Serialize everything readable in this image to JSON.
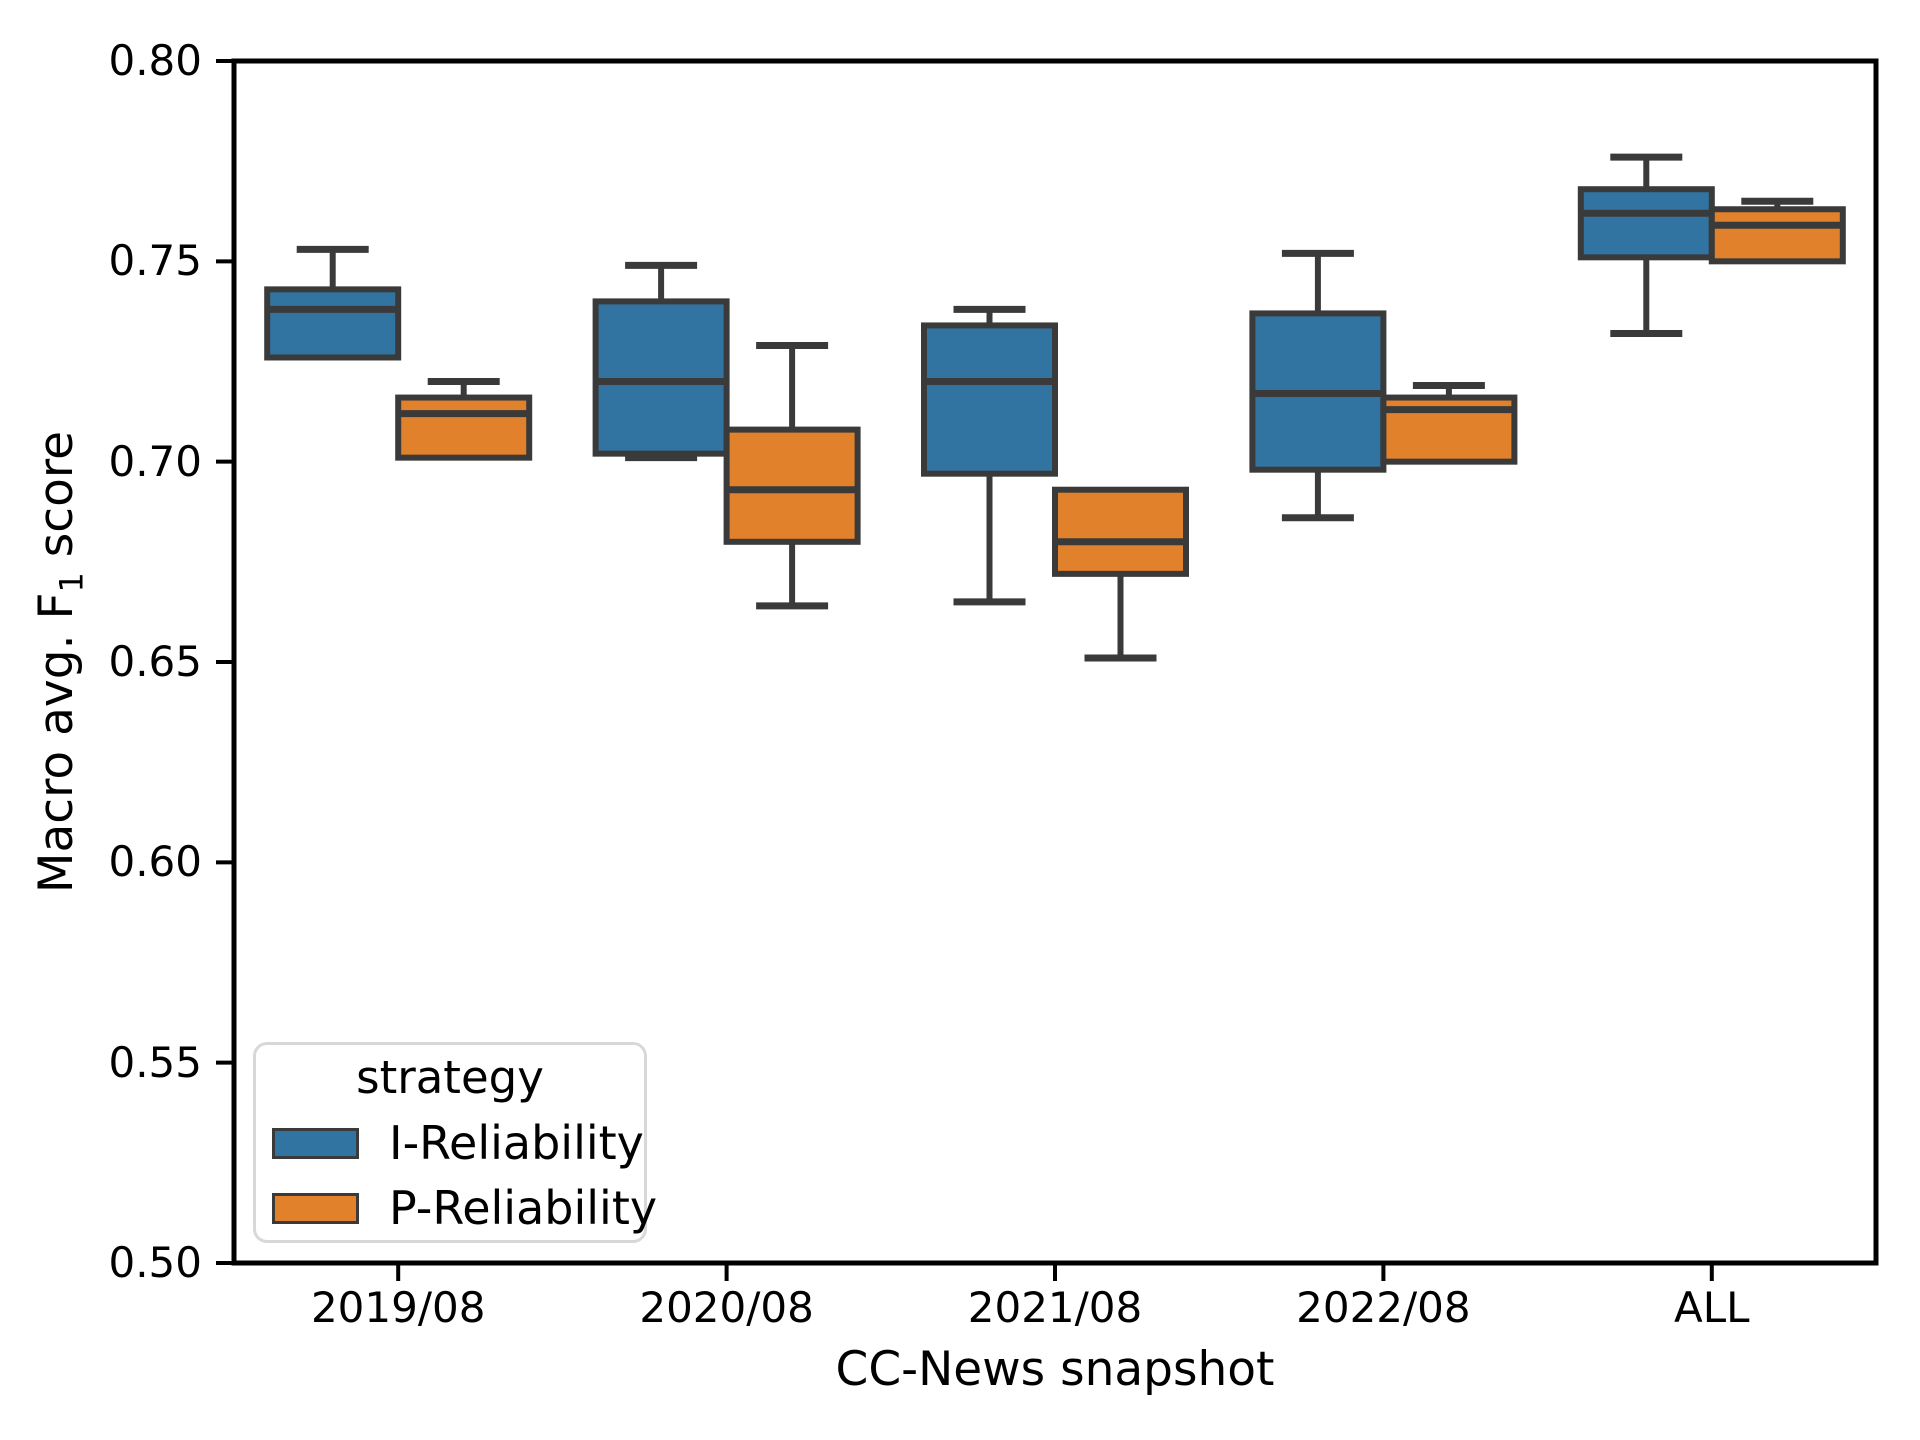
{
  "chart_data": {
    "type": "boxplot",
    "xlabel": "CC-News snapshot",
    "ylabel_prefix": "Macro avg. F",
    "ylabel_sub": "1",
    "ylabel_suffix": " score",
    "ylabel_plain": "Macro avg. F1 score",
    "categories": [
      "2019/08",
      "2020/08",
      "2021/08",
      "2022/08",
      "ALL"
    ],
    "ylim": [
      0.5,
      0.8
    ],
    "yticks": [
      0.8,
      0.75,
      0.7,
      0.65,
      0.6,
      0.55,
      0.5
    ],
    "grid": false,
    "legend": {
      "title": "strategy",
      "position": "lower left"
    },
    "colors": {
      "box_edge": "#3a3a3a",
      "spine": "#000000",
      "text": "#000000",
      "legend_border": "#d8d8d8"
    },
    "series": [
      {
        "name": "I-Reliability",
        "color": "#3274a1",
        "boxes": [
          {
            "category": "2019/08",
            "whislo": 0.726,
            "q1": 0.726,
            "med": 0.738,
            "q3": 0.743,
            "whishi": 0.753
          },
          {
            "category": "2020/08",
            "whislo": 0.701,
            "q1": 0.702,
            "med": 0.72,
            "q3": 0.74,
            "whishi": 0.749
          },
          {
            "category": "2021/08",
            "whislo": 0.665,
            "q1": 0.697,
            "med": 0.72,
            "q3": 0.734,
            "whishi": 0.738
          },
          {
            "category": "2022/08",
            "whislo": 0.686,
            "q1": 0.698,
            "med": 0.717,
            "q3": 0.737,
            "whishi": 0.752
          },
          {
            "category": "ALL",
            "whislo": 0.732,
            "q1": 0.751,
            "med": 0.762,
            "q3": 0.768,
            "whishi": 0.776
          }
        ]
      },
      {
        "name": "P-Reliability",
        "color": "#e1812c",
        "boxes": [
          {
            "category": "2019/08",
            "whislo": 0.701,
            "q1": 0.701,
            "med": 0.712,
            "q3": 0.716,
            "whishi": 0.72
          },
          {
            "category": "2020/08",
            "whislo": 0.664,
            "q1": 0.68,
            "med": 0.693,
            "q3": 0.708,
            "whishi": 0.729
          },
          {
            "category": "2021/08",
            "whislo": 0.651,
            "q1": 0.672,
            "med": 0.68,
            "q3": 0.693,
            "whishi": 0.693
          },
          {
            "category": "2022/08",
            "whislo": 0.7,
            "q1": 0.7,
            "med": 0.713,
            "q3": 0.716,
            "whishi": 0.719
          },
          {
            "category": "ALL",
            "whislo": 0.75,
            "q1": 0.75,
            "med": 0.759,
            "q3": 0.763,
            "whishi": 0.765
          }
        ]
      }
    ]
  }
}
